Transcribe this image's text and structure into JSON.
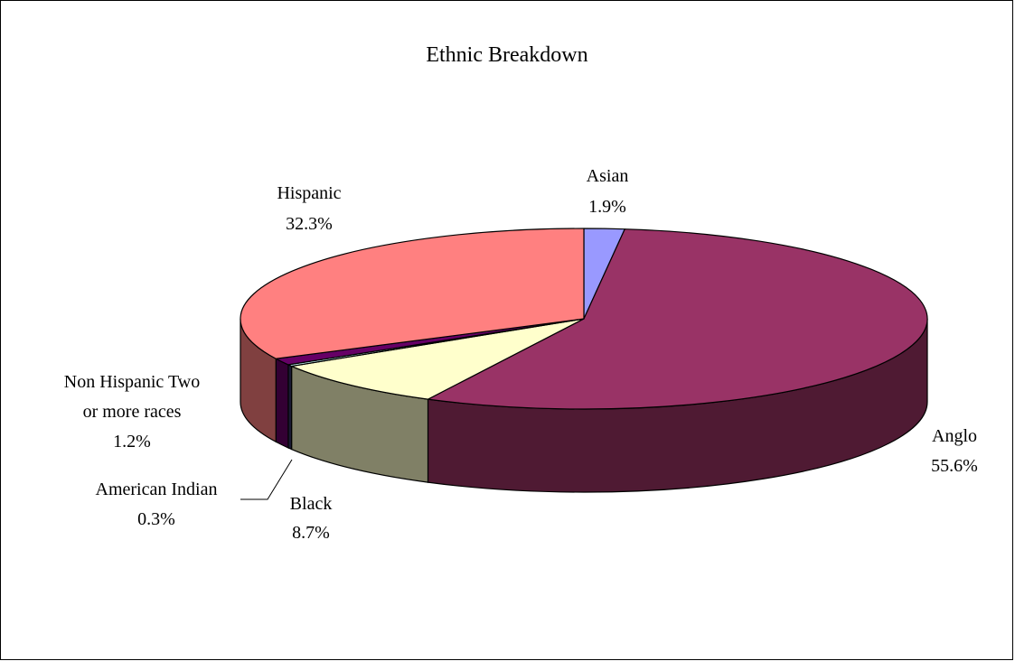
{
  "chart_data": {
    "type": "pie",
    "variant": "3d",
    "title": "Ethnic Breakdown",
    "slices": [
      {
        "name": "Asian",
        "value": 1.9,
        "label": "1.9%",
        "color": "#9999FF"
      },
      {
        "name": "Anglo",
        "value": 55.6,
        "label": "55.6%",
        "color": "#993366"
      },
      {
        "name": "Black",
        "value": 8.7,
        "label": "8.7%",
        "color": "#FFFFCC"
      },
      {
        "name": "American Indian",
        "value": 0.3,
        "label": "0.3%",
        "color": "#CCFFFF"
      },
      {
        "name": "Non Hispanic Two or more races",
        "value": 1.2,
        "label": "1.2%",
        "color": "#660066"
      },
      {
        "name": "Hispanic",
        "value": 32.3,
        "label": "32.3%",
        "color": "#FF8080"
      }
    ],
    "side_colors": {
      "Anglo": "#4F1A33",
      "Black": "#808066",
      "American Indian": "#1A1A33",
      "Non Hispanic Two or more races": "#330033",
      "Hispanic": "#804040"
    }
  }
}
